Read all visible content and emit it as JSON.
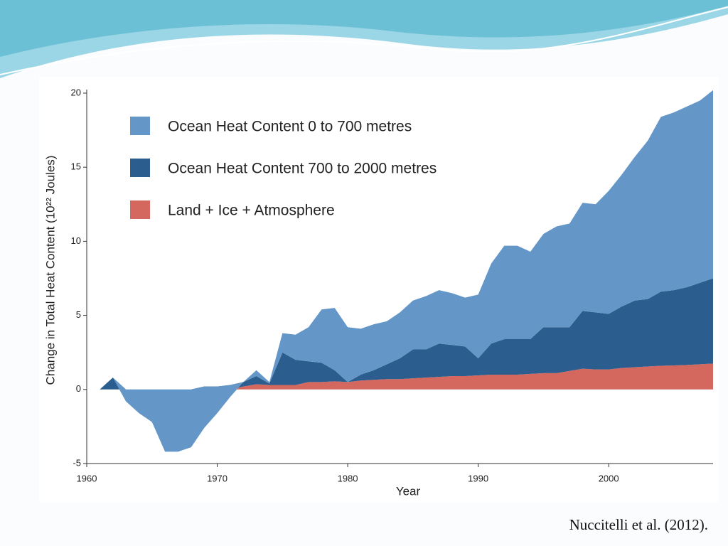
{
  "chart_data": {
    "type": "stacked-area",
    "xlabel": "Year",
    "ylabel": "Change in Total Heat Content (10²² Joules)",
    "x": [
      1961,
      1962,
      1963,
      1964,
      1965,
      1966,
      1967,
      1968,
      1969,
      1970,
      1971,
      1972,
      1973,
      1974,
      1975,
      1976,
      1977,
      1978,
      1979,
      1980,
      1981,
      1982,
      1983,
      1984,
      1985,
      1986,
      1987,
      1988,
      1989,
      1990,
      1991,
      1992,
      1993,
      1994,
      1995,
      1996,
      1997,
      1998,
      1999,
      2000,
      2001,
      2002,
      2003,
      2004,
      2005,
      2006,
      2007,
      2008
    ],
    "series": [
      {
        "name": "Ocean Heat Content 0 to 700 metres",
        "color": "#6497c8",
        "values": [
          0,
          0,
          -0.8,
          -1.6,
          -2.2,
          -4.2,
          -4.2,
          -3.9,
          -2.8,
          -1.8,
          -0.8,
          0,
          0.4,
          0.1,
          1.3,
          1.7,
          2.3,
          3.6,
          4.2,
          3.7,
          3.1,
          3.1,
          2.9,
          3.1,
          3.3,
          3.6,
          3.6,
          3.5,
          3.3,
          4.3,
          5.4,
          6.3,
          6.3,
          5.9,
          6.3,
          6.8,
          7.0,
          7.3,
          7.3,
          8.3,
          8.9,
          9.7,
          10.7,
          11.8,
          12.0,
          12.2,
          12.3,
          12.7
        ]
      },
      {
        "name": "Ocean Heat Content 700 to 2000 metres",
        "color": "#2b5e8e",
        "values": [
          0,
          0.8,
          0,
          0,
          0,
          0,
          0,
          0,
          0.2,
          0.2,
          0.3,
          0.3,
          0.55,
          0.1,
          2.2,
          1.7,
          1.4,
          1.3,
          0.75,
          0,
          0.4,
          0.65,
          1.0,
          1.4,
          1.95,
          1.9,
          2.25,
          2.1,
          2.0,
          1.15,
          2.1,
          2.4,
          2.4,
          2.35,
          3.1,
          3.1,
          2.95,
          3.9,
          3.85,
          3.75,
          4.15,
          4.5,
          4.55,
          5.0,
          5.08,
          5.25,
          5.5,
          5.75
        ]
      },
      {
        "name": "Land + Ice + Atmosphere",
        "color": "#d4675e",
        "values": [
          0,
          0,
          0,
          0,
          0,
          0,
          0,
          0,
          0,
          0,
          0,
          0.2,
          0.35,
          0.3,
          0.3,
          0.3,
          0.5,
          0.5,
          0.55,
          0.5,
          0.6,
          0.65,
          0.7,
          0.7,
          0.75,
          0.8,
          0.85,
          0.9,
          0.9,
          0.95,
          1.0,
          1.0,
          1.0,
          1.05,
          1.1,
          1.1,
          1.25,
          1.4,
          1.35,
          1.35,
          1.45,
          1.5,
          1.55,
          1.6,
          1.62,
          1.65,
          1.7,
          1.75
        ]
      }
    ],
    "xlim": [
      1960,
      2008
    ],
    "xticks": [
      1960,
      1970,
      1980,
      1990,
      2000
    ],
    "ylim": [
      -5,
      20
    ],
    "yticks": [
      -5,
      0,
      5,
      10,
      15,
      20
    ]
  },
  "citation": "Nuccitelli et al. (2012)."
}
